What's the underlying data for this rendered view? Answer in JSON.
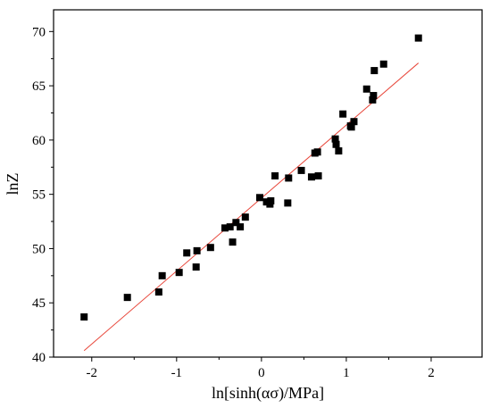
{
  "chart_data": {
    "type": "scatter",
    "title": "",
    "xlabel": "ln[sinh(ασ)/MPa]",
    "ylabel": "lnZ",
    "xlim": [
      -2.45,
      2.6
    ],
    "ylim": [
      40,
      72
    ],
    "xticks": [
      -2,
      -1,
      0,
      1,
      2
    ],
    "yticks": [
      40,
      45,
      50,
      55,
      60,
      65,
      70
    ],
    "xtick_labels": [
      "-2",
      "-1",
      "0",
      "1",
      "2"
    ],
    "ytick_labels": [
      "40",
      "45",
      "50",
      "55",
      "60",
      "65",
      "70"
    ],
    "grid": false,
    "legend": false,
    "colors": {
      "points": "#000000",
      "fit_line": "#e8463a",
      "axes": "#000000"
    },
    "series": [
      {
        "points": [
          [
            -2.09,
            43.7
          ],
          [
            -1.58,
            45.5
          ],
          [
            -1.21,
            46.0
          ],
          [
            -1.17,
            47.5
          ],
          [
            -0.97,
            47.8
          ],
          [
            -0.88,
            49.6
          ],
          [
            -0.77,
            48.3
          ],
          [
            -0.76,
            49.8
          ],
          [
            -0.6,
            50.1
          ],
          [
            -0.43,
            51.9
          ],
          [
            -0.37,
            52.0
          ],
          [
            -0.34,
            50.6
          ],
          [
            -0.3,
            52.4
          ],
          [
            -0.25,
            52.0
          ],
          [
            -0.19,
            52.9
          ],
          [
            -0.02,
            54.7
          ],
          [
            0.06,
            54.3
          ],
          [
            0.1,
            54.1
          ],
          [
            0.11,
            54.4
          ],
          [
            0.16,
            56.7
          ],
          [
            0.31,
            54.2
          ],
          [
            0.32,
            56.5
          ],
          [
            0.47,
            57.2
          ],
          [
            0.59,
            56.6
          ],
          [
            0.63,
            58.8
          ],
          [
            0.66,
            58.9
          ],
          [
            0.67,
            56.7
          ],
          [
            0.87,
            60.1
          ],
          [
            0.88,
            59.6
          ],
          [
            0.91,
            59.0
          ],
          [
            0.96,
            62.4
          ],
          [
            1.05,
            61.3
          ],
          [
            1.06,
            61.2
          ],
          [
            1.09,
            61.7
          ],
          [
            1.24,
            64.7
          ],
          [
            1.31,
            63.7
          ],
          [
            1.32,
            64.1
          ],
          [
            1.33,
            66.4
          ],
          [
            1.44,
            67.0
          ],
          [
            1.85,
            69.4
          ]
        ]
      }
    ],
    "fit_line": {
      "x": [
        -2.09,
        1.85
      ],
      "y": [
        40.6,
        67.1
      ]
    }
  }
}
